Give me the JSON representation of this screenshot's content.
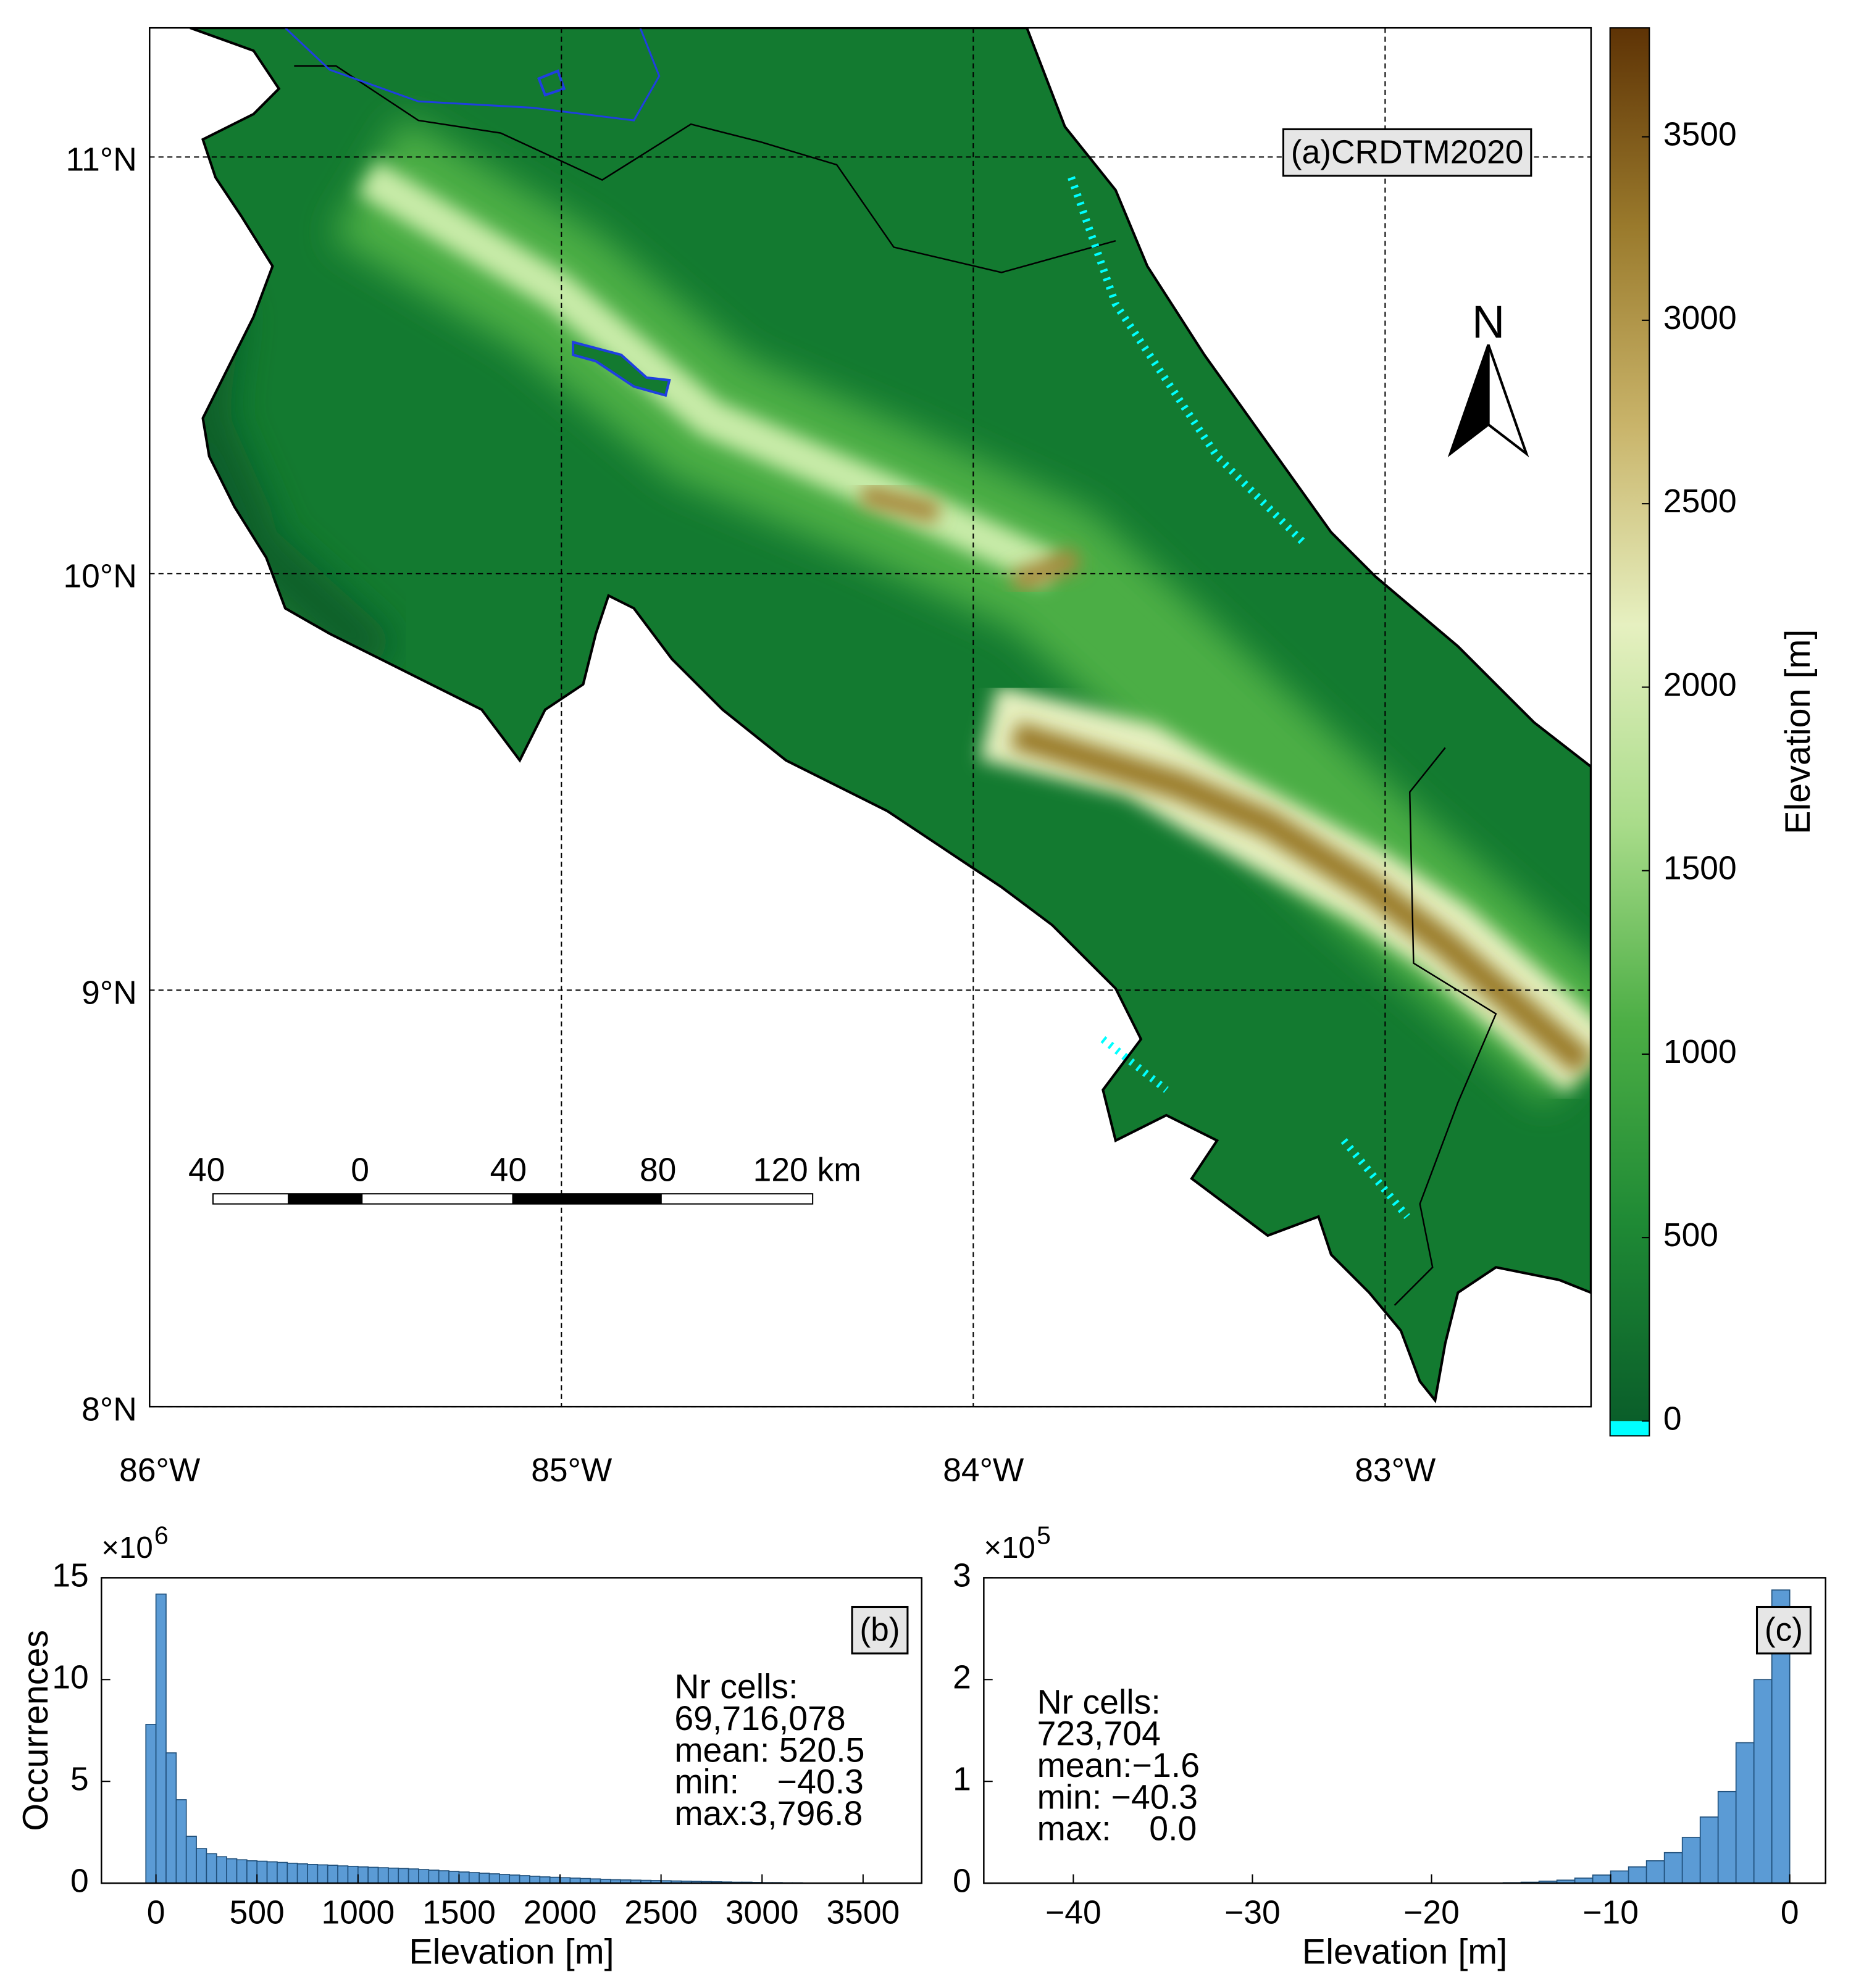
{
  "chart_data": [
    {
      "type": "map",
      "panel_label": "(a)CRDTM2020",
      "xlim": [
        -86,
        -82.5
      ],
      "ylim": [
        8,
        11.31
      ],
      "xticks": [
        {
          "value": -86,
          "label": "86°W"
        },
        {
          "value": -85,
          "label": "85°W"
        },
        {
          "value": -84,
          "label": "84°W"
        },
        {
          "value": -83,
          "label": "83°W"
        }
      ],
      "yticks": [
        {
          "value": 8,
          "label": "8°N"
        },
        {
          "value": 9,
          "label": "9°N"
        },
        {
          "value": 10,
          "label": "10°N"
        },
        {
          "value": 11,
          "label": "11°N"
        }
      ],
      "grid": true,
      "north_label": "N",
      "scale_bar_labels": [
        "40",
        "0",
        "40",
        "80",
        "120 km"
      ],
      "colorbar": {
        "label": "Elevation [m]",
        "lim": [
          -40.3,
          3796.8
        ],
        "ticks": [
          0,
          500,
          1000,
          1500,
          2000,
          2500,
          3000,
          3500
        ],
        "colors": [
          "#0a5e2a",
          "#1f8a35",
          "#4cae45",
          "#a9dc8a",
          "#e6f0c0",
          "#c9b46a",
          "#9a7a2c",
          "#5e3305"
        ],
        "below_zero_color": "#00ffff"
      }
    },
    {
      "type": "histogram",
      "panel_label": "(b)",
      "xlabel": "Elevation [m]",
      "ylabel": "Occurrences",
      "y_multiplier": "×10",
      "y_multiplier_exponent": "6",
      "color": "#5b9bd5",
      "xlim": [
        -270,
        3790
      ],
      "ylim": [
        0,
        15
      ],
      "xticks": [
        0,
        500,
        1000,
        1500,
        2000,
        2500,
        3000,
        3500
      ],
      "yticks": [
        0,
        5,
        10,
        15
      ],
      "bins": [
        -50,
        0,
        50,
        100,
        150,
        200,
        250,
        300,
        350,
        400,
        450,
        500,
        550,
        600,
        650,
        700,
        750,
        800,
        850,
        900,
        950,
        1000,
        1050,
        1100,
        1150,
        1200,
        1250,
        1300,
        1350,
        1400,
        1450,
        1500,
        1550,
        1600,
        1650,
        1700,
        1750,
        1800,
        1850,
        1900,
        1950,
        2000,
        2050,
        2100,
        2150,
        2200,
        2250,
        2300,
        2350,
        2400,
        2450,
        2500,
        2550,
        2600,
        2650,
        2700,
        2750,
        2800,
        2850,
        2900,
        2950,
        3000,
        3050,
        3100,
        3150,
        3200,
        3250,
        3300
      ],
      "values": [
        7.8,
        14.2,
        6.4,
        4.1,
        2.3,
        1.7,
        1.45,
        1.3,
        1.2,
        1.15,
        1.1,
        1.08,
        1.05,
        1.02,
        0.98,
        0.95,
        0.92,
        0.9,
        0.88,
        0.85,
        0.83,
        0.8,
        0.78,
        0.76,
        0.74,
        0.72,
        0.7,
        0.67,
        0.64,
        0.61,
        0.58,
        0.55,
        0.52,
        0.49,
        0.46,
        0.43,
        0.4,
        0.37,
        0.34,
        0.31,
        0.29,
        0.27,
        0.25,
        0.23,
        0.21,
        0.19,
        0.17,
        0.16,
        0.15,
        0.14,
        0.13,
        0.12,
        0.11,
        0.1,
        0.09,
        0.08,
        0.07,
        0.06,
        0.05,
        0.05,
        0.04,
        0.03,
        0.03,
        0.02,
        0.02,
        0.01,
        0.01
      ],
      "stats": [
        "Nr cells:",
        "69,716,078",
        "mean: 520.5",
        "min:    −40.3",
        "max:3,796.8"
      ]
    },
    {
      "type": "histogram",
      "panel_label": "(c)",
      "xlabel": "Elevation [m]",
      "y_multiplier": "×10",
      "y_multiplier_exponent": "5",
      "color": "#5b9bd5",
      "xlim": [
        -45,
        2
      ],
      "ylim": [
        0,
        3
      ],
      "xticks": [
        {
          "value": -40,
          "label": "−40"
        },
        {
          "value": -30,
          "label": "−30"
        },
        {
          "value": -20,
          "label": "−20"
        },
        {
          "value": -10,
          "label": "−10"
        },
        0
      ],
      "yticks": [
        0,
        1,
        2,
        3
      ],
      "bins": [
        -16,
        -15,
        -14,
        -13,
        -12,
        -11,
        -10,
        -9,
        -8,
        -7,
        -6,
        -5,
        -4,
        -3,
        -2,
        -1,
        0
      ],
      "values": [
        0.005,
        0.01,
        0.02,
        0.03,
        0.05,
        0.08,
        0.12,
        0.16,
        0.22,
        0.3,
        0.45,
        0.65,
        0.9,
        1.38,
        2.0,
        2.88
      ],
      "stats": [
        "Nr cells:",
        "723,704",
        "mean:−1.6",
        "min: −40.3",
        "max:    0.0"
      ]
    }
  ]
}
